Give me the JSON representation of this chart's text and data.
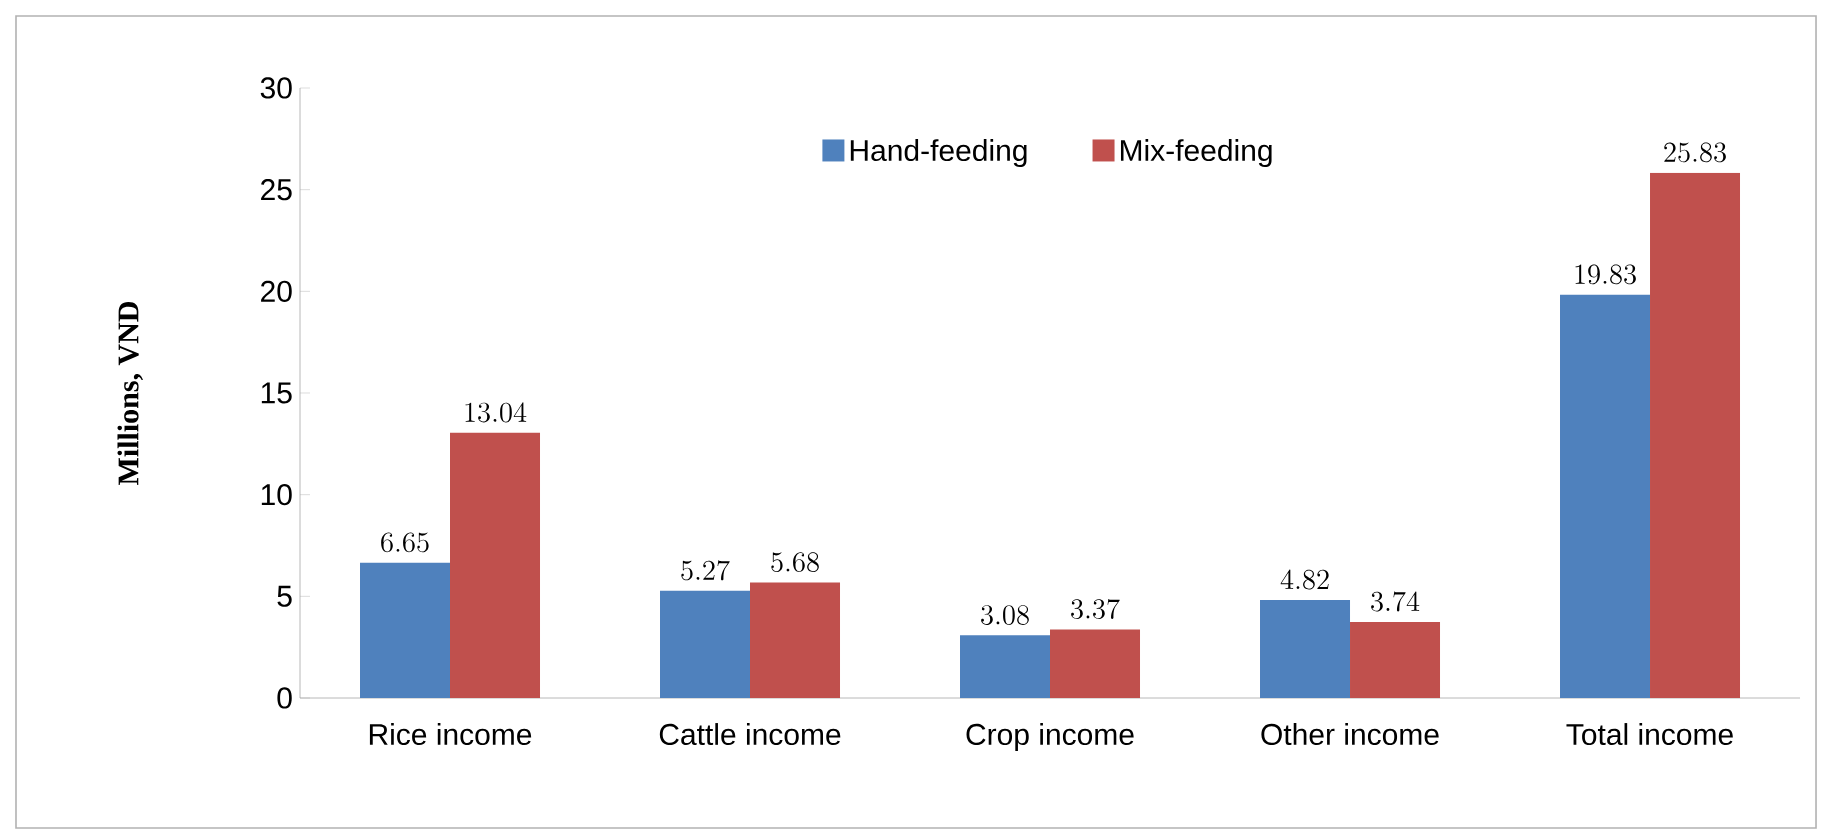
{
  "chart_data": {
    "type": "bar",
    "ylabel": "Millions, VND",
    "categories": [
      "Rice income",
      "Cattle income",
      "Crop income",
      "Other income",
      "Total income"
    ],
    "series": [
      {
        "name": "Hand-feeding",
        "color": "#4f81bd",
        "values": [
          6.65,
          5.27,
          3.08,
          4.82,
          19.83
        ]
      },
      {
        "name": "Mix-feeding",
        "color": "#c0504d",
        "values": [
          13.04,
          5.68,
          3.37,
          3.74,
          25.83
        ]
      }
    ],
    "ylim": [
      0,
      30
    ],
    "yticks": [
      0,
      5,
      10,
      15,
      20,
      25,
      30
    ],
    "data_labels": true,
    "legend": "top",
    "grid": false
  }
}
